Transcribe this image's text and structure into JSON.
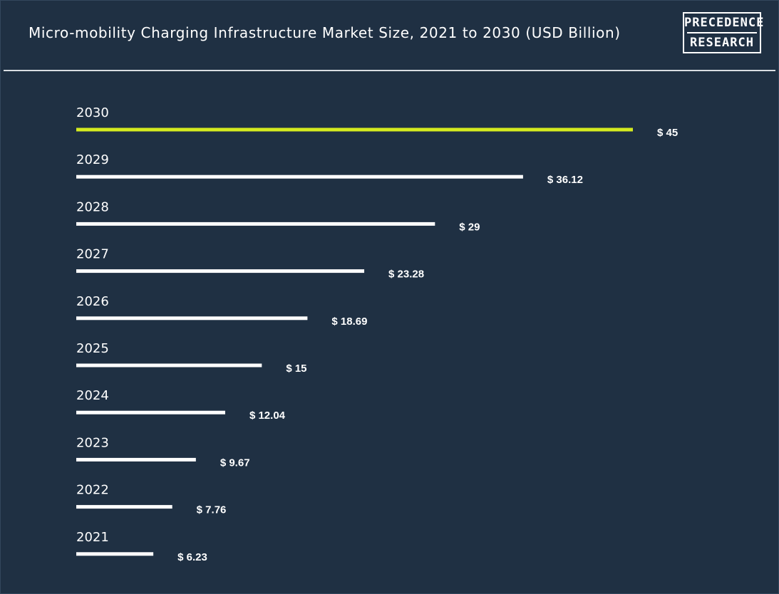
{
  "title": "Micro-mobility Charging Infrastructure Market Size, 2021 to 2030 (USD Billion)",
  "logo": {
    "line1": "PRECEDENCE",
    "line2": "RESEARCH"
  },
  "colors": {
    "background": "#1f3043",
    "bar": "#ffffff",
    "highlight_bar": "#d4ea1f",
    "text": "#ffffff"
  },
  "chart_data": {
    "type": "bar",
    "orientation": "horizontal",
    "categories": [
      "2030",
      "2029",
      "2028",
      "2027",
      "2026",
      "2025",
      "2024",
      "2023",
      "2022",
      "2021"
    ],
    "values": [
      45,
      36.12,
      29,
      23.28,
      18.69,
      15,
      12.04,
      9.67,
      7.76,
      6.23
    ],
    "value_labels": [
      "$ 45",
      "$ 36.12",
      "$ 29",
      "$ 23.28",
      "$ 18.69",
      "$ 15",
      "$ 12.04",
      "$ 9.67",
      "$ 7.76",
      "$ 6.23"
    ],
    "highlight": "2030",
    "grid": false,
    "legend": "none"
  }
}
